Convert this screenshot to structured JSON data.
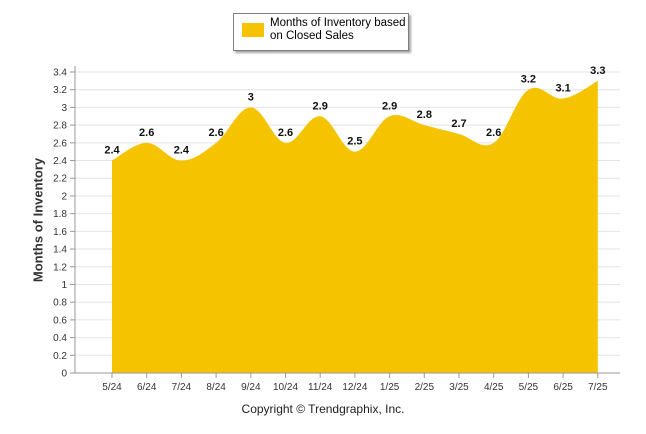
{
  "chart_data": {
    "type": "area",
    "categories": [
      "5/24",
      "6/24",
      "7/24",
      "8/24",
      "9/24",
      "10/24",
      "11/24",
      "12/24",
      "1/25",
      "2/25",
      "3/25",
      "4/25",
      "5/25",
      "6/25",
      "7/25"
    ],
    "series": [
      {
        "name": "Months of Inventory based on Closed Sales",
        "values": [
          2.4,
          2.6,
          2.4,
          2.6,
          3.0,
          2.6,
          2.9,
          2.5,
          2.9,
          2.8,
          2.7,
          2.6,
          3.2,
          3.1,
          3.3
        ],
        "color": "#f5c300"
      }
    ],
    "data_labels": [
      "2.4",
      "2.6",
      "2.4",
      "2.6",
      "3",
      "2.6",
      "2.9",
      "2.5",
      "2.9",
      "2.8",
      "2.7",
      "2.6",
      "3.2",
      "3.1",
      "3.3"
    ],
    "ylabel": "Months of Inventory",
    "xlabel": "",
    "ylim": [
      0,
      3.4
    ],
    "yticks": [
      "0",
      "0.2",
      "0.4",
      "0.6",
      "0.8",
      "1",
      "1.2",
      "1.4",
      "1.6",
      "1.8",
      "2",
      "2.2",
      "2.4",
      "2.6",
      "2.8",
      "3",
      "3.2",
      "3.4"
    ],
    "grid": true,
    "legend_position": "top-center"
  },
  "legend": {
    "label": "Months of Inventory based on Closed Sales"
  },
  "footer": {
    "copyright": "Copyright © Trendgraphix, Inc."
  }
}
